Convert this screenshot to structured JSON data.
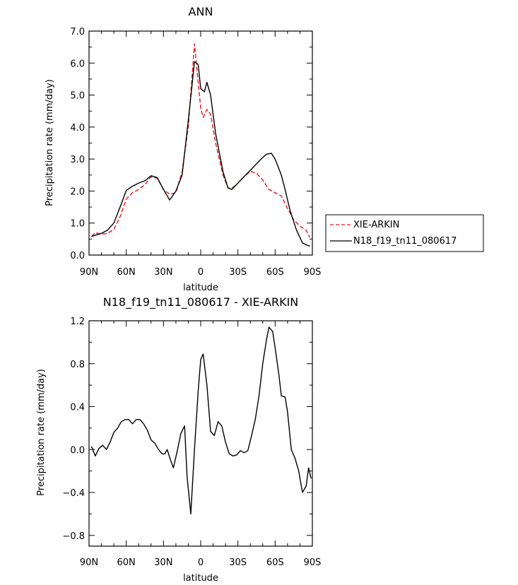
{
  "chart_data": [
    {
      "type": "line",
      "title": "ANN",
      "xlabel": "latitude",
      "ylabel": "Precipitation rate (mm/day)",
      "xlim": [
        90,
        -90
      ],
      "ylim": [
        0,
        7
      ],
      "xticks": [
        90,
        60,
        30,
        0,
        -30,
        -60,
        -90
      ],
      "xtick_labels": [
        "90N",
        "60N",
        "30N",
        "0",
        "30S",
        "60S",
        "90S"
      ],
      "yticks": [
        0,
        1,
        2,
        3,
        4,
        5,
        6,
        7
      ],
      "ytick_labels": [
        "0.0",
        "1.0",
        "2.0",
        "3.0",
        "4.0",
        "5.0",
        "6.0",
        "7.0"
      ],
      "legend_position": "right",
      "series": [
        {
          "name": "XIE-ARKIN",
          "color": "#e8141c",
          "dash": "dashed",
          "points": [
            [
              88,
              0.58
            ],
            [
              85,
              0.7
            ],
            [
              80,
              0.65
            ],
            [
              75,
              0.68
            ],
            [
              70,
              0.8
            ],
            [
              65,
              1.2
            ],
            [
              60,
              1.75
            ],
            [
              55,
              1.95
            ],
            [
              50,
              2.05
            ],
            [
              45,
              2.2
            ],
            [
              40,
              2.45
            ],
            [
              35,
              2.4
            ],
            [
              30,
              2.05
            ],
            [
              25,
              1.9
            ],
            [
              20,
              1.95
            ],
            [
              15,
              2.6
            ],
            [
              10,
              4.0
            ],
            [
              5,
              6.6
            ],
            [
              3,
              5.8
            ],
            [
              0,
              4.6
            ],
            [
              -2,
              4.3
            ],
            [
              -5,
              4.55
            ],
            [
              -8,
              4.4
            ],
            [
              -12,
              3.5
            ],
            [
              -18,
              2.5
            ],
            [
              -22,
              2.1
            ],
            [
              -25,
              2.08
            ],
            [
              -30,
              2.25
            ],
            [
              -35,
              2.45
            ],
            [
              -40,
              2.62
            ],
            [
              -45,
              2.55
            ],
            [
              -50,
              2.35
            ],
            [
              -55,
              2.05
            ],
            [
              -60,
              1.95
            ],
            [
              -65,
              1.85
            ],
            [
              -70,
              1.45
            ],
            [
              -75,
              1.1
            ],
            [
              -80,
              0.9
            ],
            [
              -85,
              0.78
            ],
            [
              -88,
              0.55
            ]
          ]
        },
        {
          "name": "N18_f19_tn11_080617",
          "color": "#000000",
          "dash": "solid",
          "points": [
            [
              88,
              0.58
            ],
            [
              85,
              0.62
            ],
            [
              80,
              0.68
            ],
            [
              75,
              0.78
            ],
            [
              70,
              1.0
            ],
            [
              65,
              1.5
            ],
            [
              60,
              2.02
            ],
            [
              55,
              2.15
            ],
            [
              50,
              2.25
            ],
            [
              45,
              2.32
            ],
            [
              40,
              2.48
            ],
            [
              35,
              2.42
            ],
            [
              30,
              2.05
            ],
            [
              27,
              1.85
            ],
            [
              25,
              1.72
            ],
            [
              20,
              2.0
            ],
            [
              15,
              2.5
            ],
            [
              10,
              4.2
            ],
            [
              7,
              5.3
            ],
            [
              5,
              6.05
            ],
            [
              2,
              5.95
            ],
            [
              0,
              5.2
            ],
            [
              -3,
              5.1
            ],
            [
              -5,
              5.4
            ],
            [
              -8,
              5.0
            ],
            [
              -12,
              3.8
            ],
            [
              -18,
              2.6
            ],
            [
              -22,
              2.1
            ],
            [
              -25,
              2.05
            ],
            [
              -30,
              2.25
            ],
            [
              -35,
              2.45
            ],
            [
              -40,
              2.65
            ],
            [
              -45,
              2.85
            ],
            [
              -50,
              3.05
            ],
            [
              -53,
              3.15
            ],
            [
              -57,
              3.18
            ],
            [
              -60,
              3.0
            ],
            [
              -65,
              2.5
            ],
            [
              -68,
              2.05
            ],
            [
              -72,
              1.4
            ],
            [
              -77,
              0.8
            ],
            [
              -82,
              0.38
            ],
            [
              -85,
              0.32
            ],
            [
              -88,
              0.28
            ]
          ]
        }
      ]
    },
    {
      "type": "line",
      "title": "N18_f19_tn11_080617 - XIE-ARKIN",
      "xlabel": "latitude",
      "ylabel": "Precipitation rate (mm/day)",
      "xlim": [
        90,
        -90
      ],
      "ylim": [
        -0.9,
        1.2
      ],
      "xticks": [
        90,
        60,
        30,
        0,
        -30,
        -60,
        -90
      ],
      "xtick_labels": [
        "90N",
        "60N",
        "30N",
        "0",
        "30S",
        "60S",
        "90S"
      ],
      "yticks": [
        -0.8,
        -0.4,
        0,
        0.4,
        0.8,
        1.2
      ],
      "ytick_labels": [
        "−0.8",
        "−0.4",
        "0.0",
        "0.4",
        "0.8",
        "1.2"
      ],
      "series": [
        {
          "color": "#000000",
          "dash": "solid",
          "points": [
            [
              88,
              0.03
            ],
            [
              85,
              -0.06
            ],
            [
              82,
              0.01
            ],
            [
              79,
              0.04
            ],
            [
              76,
              0.0
            ],
            [
              73,
              0.07
            ],
            [
              70,
              0.16
            ],
            [
              67,
              0.2
            ],
            [
              64,
              0.26
            ],
            [
              61,
              0.28
            ],
            [
              58,
              0.28
            ],
            [
              55,
              0.24
            ],
            [
              52,
              0.28
            ],
            [
              49,
              0.28
            ],
            [
              46,
              0.24
            ],
            [
              43,
              0.18
            ],
            [
              40,
              0.09
            ],
            [
              37,
              0.06
            ],
            [
              34,
              0.0
            ],
            [
              31,
              -0.04
            ],
            [
              29,
              -0.04
            ],
            [
              27,
              0.0
            ],
            [
              24,
              -0.11
            ],
            [
              22,
              -0.17
            ],
            [
              19,
              -0.02
            ],
            [
              16,
              0.15
            ],
            [
              13,
              0.22
            ],
            [
              11,
              -0.25
            ],
            [
              8,
              -0.6
            ],
            [
              5,
              0.0
            ],
            [
              2,
              0.55
            ],
            [
              0,
              0.84
            ],
            [
              -2,
              0.89
            ],
            [
              -5,
              0.6
            ],
            [
              -8,
              0.17
            ],
            [
              -11,
              0.13
            ],
            [
              -14,
              0.26
            ],
            [
              -17,
              0.22
            ],
            [
              -20,
              0.07
            ],
            [
              -23,
              -0.04
            ],
            [
              -26,
              -0.06
            ],
            [
              -29,
              -0.05
            ],
            [
              -32,
              -0.01
            ],
            [
              -35,
              -0.03
            ],
            [
              -38,
              -0.01
            ],
            [
              -41,
              0.13
            ],
            [
              -44,
              0.28
            ],
            [
              -47,
              0.5
            ],
            [
              -50,
              0.8
            ],
            [
              -53,
              1.02
            ],
            [
              -55,
              1.14
            ],
            [
              -58,
              1.1
            ],
            [
              -60,
              0.95
            ],
            [
              -63,
              0.7
            ],
            [
              -65,
              0.5
            ],
            [
              -68,
              0.49
            ],
            [
              -70,
              0.35
            ],
            [
              -73,
              0.0
            ],
            [
              -76,
              -0.08
            ],
            [
              -79,
              -0.2
            ],
            [
              -82,
              -0.4
            ],
            [
              -85,
              -0.34
            ],
            [
              -87,
              -0.17
            ],
            [
              -89,
              -0.27
            ]
          ]
        }
      ]
    }
  ]
}
